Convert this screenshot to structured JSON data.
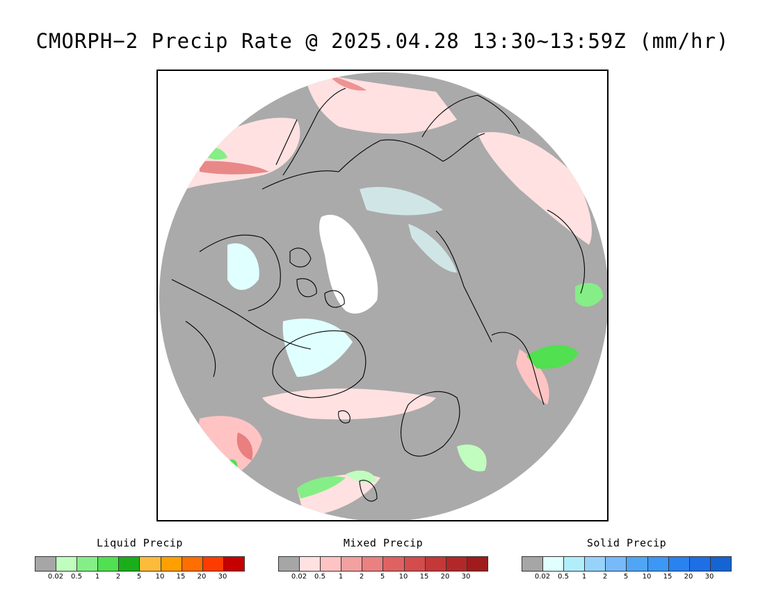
{
  "title": "CMORPH−2 Precip Rate @ 2025.04.28 13:30~13:59Z (mm/hr)",
  "map": {
    "projection": "north-polar-stereographic",
    "background_color": "#aaaaaa",
    "coastline_color": "#000000",
    "no_data_color": "#ffffff"
  },
  "legends": [
    {
      "title": "Liquid Precip",
      "colors": [
        "#a6a6a6",
        "#c0fdbe",
        "#86ee86",
        "#50e050",
        "#1aaf1a",
        "#fdbb3a",
        "#ff9f00",
        "#ff6e00",
        "#ff3c00",
        "#c50000"
      ],
      "ticks": [
        "0.02",
        "0.5",
        "1",
        "2",
        "5",
        "10",
        "15",
        "20",
        "30"
      ]
    },
    {
      "title": "Mixed Precip",
      "colors": [
        "#a6a6a6",
        "#ffe1e1",
        "#ffc3c3",
        "#f2a0a0",
        "#ea8080",
        "#df6262",
        "#d44c4c",
        "#c43838",
        "#b22828",
        "#a01c1c"
      ],
      "ticks": [
        "0.02",
        "0.5",
        "1",
        "2",
        "5",
        "10",
        "15",
        "20",
        "30"
      ]
    },
    {
      "title": "Solid Precip",
      "colors": [
        "#a6a6a6",
        "#e0ffff",
        "#b0eefa",
        "#96d2fa",
        "#78b9fa",
        "#50a5f5",
        "#3c97f5",
        "#2882f0",
        "#1e6ee6",
        "#1464d2"
      ],
      "ticks": [
        "0.02",
        "0.5",
        "1",
        "2",
        "5",
        "10",
        "15",
        "20",
        "30"
      ]
    }
  ]
}
